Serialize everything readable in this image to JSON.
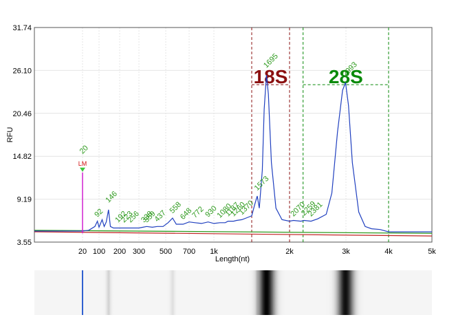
{
  "colors": {
    "electropherogram": "#1f3fbf",
    "peak_labels": "#2e9a1e",
    "marker_18s": "#8b1010",
    "marker_28s": "#0a8a0a",
    "ladder_marker": "#d020d0",
    "lm_label": "#d01010",
    "baseline_green": "#2e9a1e",
    "baseline_red": "#c02020",
    "grid": "#e4e4e4"
  },
  "chart_data": {
    "type": "line",
    "xlabel": "Length(nt)",
    "ylabel": "RFU",
    "yticks": [
      "31.74",
      "26.10",
      "20.46",
      "14.82",
      "9.19",
      "3.55"
    ],
    "ylim": [
      3.55,
      31.74
    ],
    "xticks": [
      {
        "label": "20",
        "nt": 20
      },
      {
        "label": "100",
        "nt": 100
      },
      {
        "label": "200",
        "nt": 200
      },
      {
        "label": "300",
        "nt": 300
      },
      {
        "label": "500",
        "nt": 500
      },
      {
        "label": "700",
        "nt": 700
      },
      {
        "label": "1k",
        "nt": 1000
      },
      {
        "label": "2k",
        "nt": 2000
      },
      {
        "label": "3k",
        "nt": 3000
      },
      {
        "label": "4k",
        "nt": 4000
      },
      {
        "label": "5k",
        "nt": 5000
      }
    ],
    "grid": true,
    "series": [
      {
        "name": "",
        "points": [
          [
            0,
            5.0
          ],
          [
            20,
            5.0
          ],
          [
            50,
            5.1
          ],
          [
            80,
            5.6
          ],
          [
            92,
            6.3
          ],
          [
            100,
            5.5
          ],
          [
            115,
            6.5
          ],
          [
            125,
            5.6
          ],
          [
            135,
            6.2
          ],
          [
            146,
            7.8
          ],
          [
            155,
            5.6
          ],
          [
            170,
            5.4
          ],
          [
            192,
            5.4
          ],
          [
            223,
            5.4
          ],
          [
            256,
            5.4
          ],
          [
            300,
            5.4
          ],
          [
            330,
            5.5
          ],
          [
            358,
            5.6
          ],
          [
            400,
            5.5
          ],
          [
            437,
            5.6
          ],
          [
            480,
            5.6
          ],
          [
            520,
            6.1
          ],
          [
            558,
            6.7
          ],
          [
            590,
            5.9
          ],
          [
            648,
            5.9
          ],
          [
            700,
            6.2
          ],
          [
            772,
            6.1
          ],
          [
            850,
            6.0
          ],
          [
            930,
            6.2
          ],
          [
            1000,
            6.0
          ],
          [
            1080,
            6.1
          ],
          [
            1150,
            6.1
          ],
          [
            1187,
            6.3
          ],
          [
            1260,
            6.3
          ],
          [
            1300,
            6.4
          ],
          [
            1370,
            6.5
          ],
          [
            1450,
            6.8
          ],
          [
            1500,
            7.0
          ],
          [
            1540,
            8.5
          ],
          [
            1573,
            9.6
          ],
          [
            1600,
            8.0
          ],
          [
            1640,
            13.0
          ],
          [
            1665,
            21.0
          ],
          [
            1695,
            25.5
          ],
          [
            1720,
            23.0
          ],
          [
            1760,
            14.0
          ],
          [
            1820,
            8.0
          ],
          [
            1900,
            6.5
          ],
          [
            2000,
            6.3
          ],
          [
            2070,
            6.4
          ],
          [
            2200,
            6.3
          ],
          [
            2259,
            6.4
          ],
          [
            2381,
            6.3
          ],
          [
            2500,
            6.6
          ],
          [
            2650,
            7.2
          ],
          [
            2750,
            10.0
          ],
          [
            2850,
            18.0
          ],
          [
            2940,
            23.5
          ],
          [
            2993,
            24.5
          ],
          [
            3060,
            21.5
          ],
          [
            3150,
            14.0
          ],
          [
            3300,
            7.5
          ],
          [
            3450,
            5.6
          ],
          [
            3600,
            5.3
          ],
          [
            3800,
            5.2
          ],
          [
            4000,
            4.9
          ],
          [
            4500,
            4.9
          ],
          [
            5000,
            4.9
          ]
        ]
      }
    ],
    "peak_labels": [
      {
        "label": "20",
        "nt": 20,
        "rfu": 14.82
      },
      {
        "label": "92",
        "nt": 92,
        "rfu": 6.5
      },
      {
        "label": "146",
        "nt": 146,
        "rfu": 8.4
      },
      {
        "label": "192",
        "nt": 192,
        "rfu": 5.8
      },
      {
        "label": "223",
        "nt": 223,
        "rfu": 5.8
      },
      {
        "label": "256",
        "nt": 256,
        "rfu": 5.8
      },
      {
        "label": "338",
        "nt": 338,
        "rfu": 5.8
      },
      {
        "label": "359",
        "nt": 359,
        "rfu": 5.8
      },
      {
        "label": "437",
        "nt": 437,
        "rfu": 5.9
      },
      {
        "label": "558",
        "nt": 558,
        "rfu": 7.0
      },
      {
        "label": "648",
        "nt": 648,
        "rfu": 6.2
      },
      {
        "label": "772",
        "nt": 772,
        "rfu": 6.4
      },
      {
        "label": "930",
        "nt": 930,
        "rfu": 6.5
      },
      {
        "label": "1080",
        "nt": 1080,
        "rfu": 6.4
      },
      {
        "label": "1187",
        "nt": 1187,
        "rfu": 6.6
      },
      {
        "label": "1260",
        "nt": 1260,
        "rfu": 6.6
      },
      {
        "label": "1370",
        "nt": 1370,
        "rfu": 6.8
      },
      {
        "label": "1573",
        "nt": 1573,
        "rfu": 10.0
      },
      {
        "label": "1695",
        "nt": 1695,
        "rfu": 26.1
      },
      {
        "label": "2070",
        "nt": 2070,
        "rfu": 6.6
      },
      {
        "label": "2259",
        "nt": 2259,
        "rfu": 6.7
      },
      {
        "label": "2381",
        "nt": 2381,
        "rfu": 6.6
      },
      {
        "label": "2993",
        "nt": 2993,
        "rfu": 25.0
      }
    ],
    "ladder_marker": {
      "label": "LM",
      "nt": 20,
      "rfu": 13.6
    },
    "regions": [
      {
        "label": "18S",
        "from_nt": 1500,
        "to_nt": 2000,
        "label_rfu": 24.5
      },
      {
        "label": "28S",
        "from_nt": 2240,
        "to_nt": 4000,
        "label_rfu": 24.5
      }
    ],
    "gel_bands": [
      {
        "nt": 20,
        "kind": "marker"
      },
      {
        "nt": 146,
        "intensity": 0.15
      },
      {
        "nt": 558,
        "intensity": 0.1
      },
      {
        "nt": 1573,
        "intensity": 0.3
      },
      {
        "nt": 1695,
        "intensity": 1.0
      },
      {
        "nt": 2993,
        "intensity": 0.95
      }
    ]
  }
}
